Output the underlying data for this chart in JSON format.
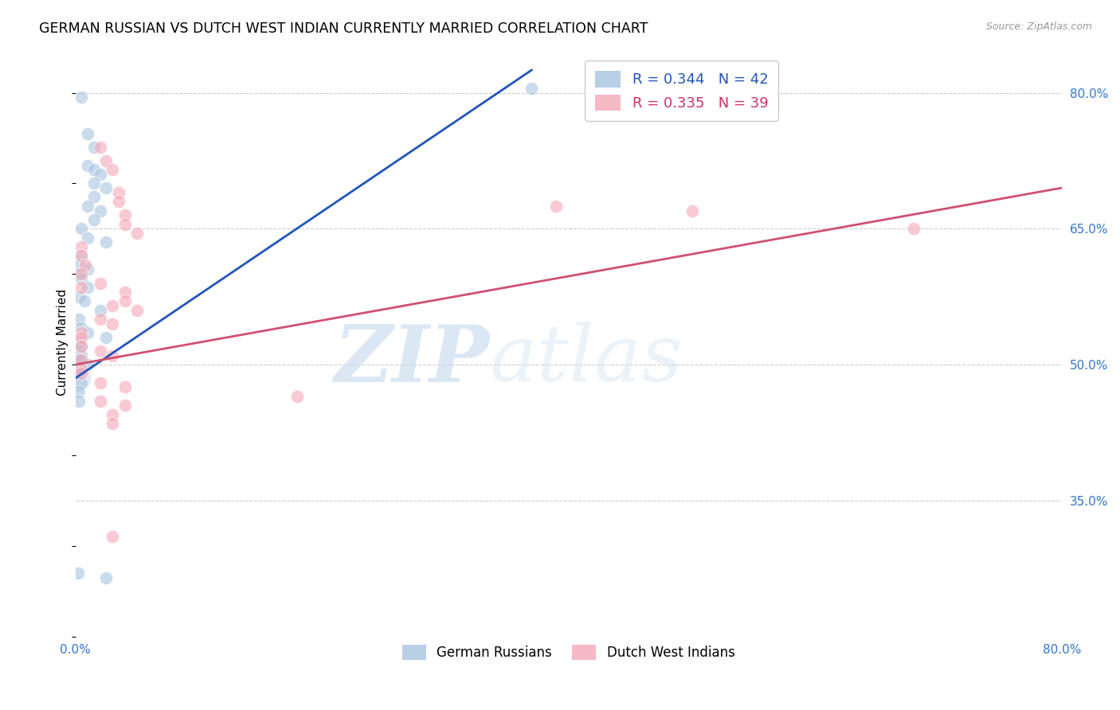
{
  "title": "GERMAN RUSSIAN VS DUTCH WEST INDIAN CURRENTLY MARRIED CORRELATION CHART",
  "source": "Source: ZipAtlas.com",
  "ylabel": "Currently Married",
  "yticks": [
    "80.0%",
    "65.0%",
    "50.0%",
    "35.0%"
  ],
  "ytick_vals": [
    0.8,
    0.65,
    0.5,
    0.35
  ],
  "blue_scatter": [
    [
      0.5,
      79.5
    ],
    [
      1.0,
      75.5
    ],
    [
      1.5,
      74.0
    ],
    [
      1.0,
      72.0
    ],
    [
      1.5,
      71.5
    ],
    [
      2.0,
      71.0
    ],
    [
      1.5,
      70.0
    ],
    [
      2.5,
      69.5
    ],
    [
      1.5,
      68.5
    ],
    [
      1.0,
      67.5
    ],
    [
      2.0,
      67.0
    ],
    [
      1.5,
      66.0
    ],
    [
      0.5,
      65.0
    ],
    [
      1.0,
      64.0
    ],
    [
      2.5,
      63.5
    ],
    [
      0.5,
      62.0
    ],
    [
      0.3,
      61.0
    ],
    [
      1.0,
      60.5
    ],
    [
      0.3,
      60.0
    ],
    [
      0.5,
      59.5
    ],
    [
      1.0,
      58.5
    ],
    [
      0.3,
      57.5
    ],
    [
      0.7,
      57.0
    ],
    [
      2.0,
      56.0
    ],
    [
      0.3,
      55.0
    ],
    [
      0.5,
      54.0
    ],
    [
      1.0,
      53.5
    ],
    [
      2.5,
      53.0
    ],
    [
      0.3,
      52.5
    ],
    [
      0.5,
      52.0
    ],
    [
      0.3,
      51.5
    ],
    [
      0.5,
      51.0
    ],
    [
      0.3,
      50.5
    ],
    [
      1.0,
      50.0
    ],
    [
      0.5,
      49.5
    ],
    [
      0.3,
      49.0
    ],
    [
      0.5,
      48.0
    ],
    [
      0.3,
      47.0
    ],
    [
      0.3,
      46.0
    ],
    [
      0.2,
      27.0
    ],
    [
      2.5,
      26.5
    ],
    [
      37.0,
      80.5
    ]
  ],
  "pink_scatter": [
    [
      2.0,
      74.0
    ],
    [
      2.5,
      72.5
    ],
    [
      3.0,
      71.5
    ],
    [
      3.5,
      69.0
    ],
    [
      3.5,
      68.0
    ],
    [
      4.0,
      66.5
    ],
    [
      4.0,
      65.5
    ],
    [
      5.0,
      64.5
    ],
    [
      0.5,
      63.0
    ],
    [
      0.5,
      62.0
    ],
    [
      0.8,
      61.0
    ],
    [
      0.5,
      60.0
    ],
    [
      2.0,
      59.0
    ],
    [
      0.5,
      58.5
    ],
    [
      4.0,
      58.0
    ],
    [
      4.0,
      57.0
    ],
    [
      3.0,
      56.5
    ],
    [
      5.0,
      56.0
    ],
    [
      2.0,
      55.0
    ],
    [
      3.0,
      54.5
    ],
    [
      0.5,
      53.5
    ],
    [
      0.5,
      53.0
    ],
    [
      0.5,
      52.0
    ],
    [
      2.0,
      51.5
    ],
    [
      3.0,
      51.0
    ],
    [
      0.5,
      50.5
    ],
    [
      0.5,
      49.5
    ],
    [
      0.5,
      49.0
    ],
    [
      2.0,
      48.0
    ],
    [
      4.0,
      47.5
    ],
    [
      2.0,
      46.0
    ],
    [
      4.0,
      45.5
    ],
    [
      3.0,
      44.5
    ],
    [
      3.0,
      43.5
    ],
    [
      18.0,
      46.5
    ],
    [
      39.0,
      67.5
    ],
    [
      3.0,
      31.0
    ],
    [
      50.0,
      67.0
    ],
    [
      68.0,
      65.0
    ]
  ],
  "blue_line": [
    [
      0.0,
      48.5
    ],
    [
      37.0,
      82.5
    ]
  ],
  "pink_line": [
    [
      0.0,
      50.0
    ],
    [
      80.0,
      69.5
    ]
  ],
  "xlim": [
    0.0,
    80.0
  ],
  "ylim": [
    20.0,
    85.0
  ],
  "scatter_size": 140,
  "blue_color": "#a8c4e0",
  "pink_color": "#f4a8b8",
  "blue_line_color": "#2255bb",
  "pink_line_color": "#d05070",
  "watermark_zip": "ZIP",
  "watermark_atlas": "atlas",
  "grid_color": "#cccccc",
  "legend1_blue_text": "R = 0.344   N = 42",
  "legend1_pink_text": "R = 0.335   N = 39",
  "legend2_blue": "German Russians",
  "legend2_pink": "Dutch West Indians",
  "legend1_text_color_blue": "#2255bb",
  "legend1_text_color_pink": "#cc3366"
}
